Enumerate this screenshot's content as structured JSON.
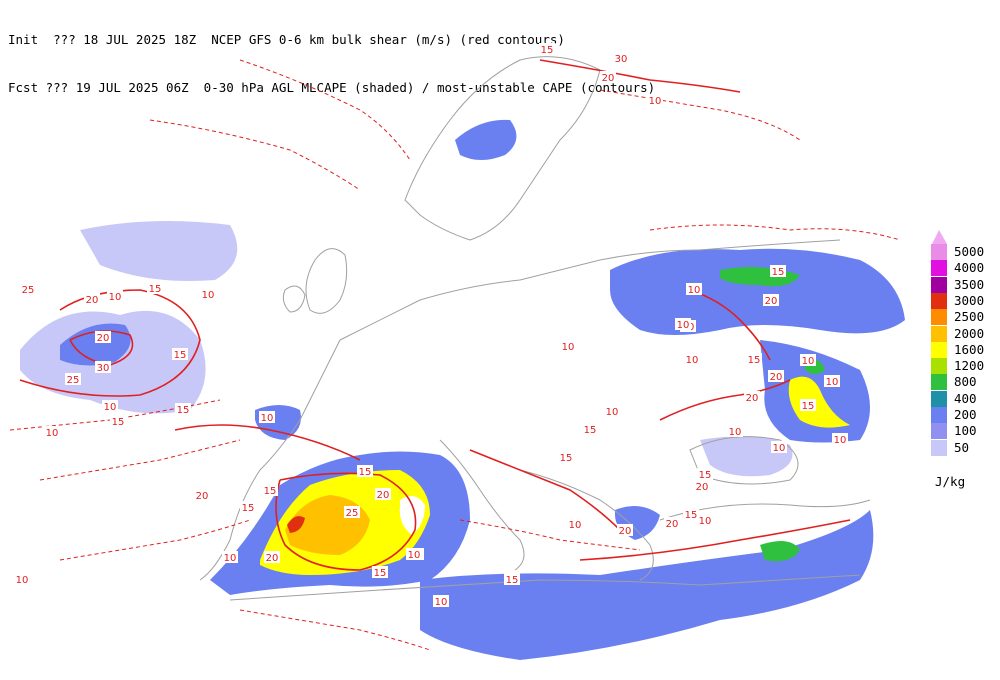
{
  "header": {
    "line1": "Init  ??? 18 JUL 2025 18Z  NCEP GFS 0-6 km bulk shear (m/s) (red contours)",
    "line2": "Fcst ??? 19 JUL 2025 06Z  0-30 hPa AGL MLCAPE (shaded) / most-unstable CAPE (contours)"
  },
  "legend": {
    "units": "J/kg",
    "levels": [
      {
        "label": "5000",
        "color": "#e88ce8"
      },
      {
        "label": "4000",
        "color": "#e010e0"
      },
      {
        "label": "3500",
        "color": "#a000a0"
      },
      {
        "label": "3000",
        "color": "#e03010"
      },
      {
        "label": "2500",
        "color": "#ff8c00"
      },
      {
        "label": "2000",
        "color": "#ffc000"
      },
      {
        "label": "1600",
        "color": "#ffff00"
      },
      {
        "label": "1200",
        "color": "#a8e000"
      },
      {
        "label": "800",
        "color": "#30c040"
      },
      {
        "label": "400",
        "color": "#1e90a8"
      },
      {
        "label": "200",
        "color": "#6a80f0"
      },
      {
        "label": "100",
        "color": "#9090f0"
      },
      {
        "label": "50",
        "color": "#c8c8f8"
      }
    ],
    "top_marker_color": "#f0a8f0"
  },
  "shear_labels": [
    "25",
    "10",
    "20",
    "15",
    "30",
    "10",
    "10",
    "15",
    "10",
    "15",
    "10",
    "15",
    "20",
    "15",
    "20",
    "10",
    "25",
    "10",
    "20",
    "15",
    "15",
    "15",
    "20",
    "25",
    "15",
    "15",
    "20",
    "10",
    "15",
    "10",
    "20",
    "15",
    "10",
    "20",
    "15",
    "10",
    "20",
    "15",
    "10",
    "30",
    "20",
    "15",
    "10",
    "10",
    "10",
    "15",
    "10",
    "15",
    "10",
    "10",
    "20",
    "10",
    "10",
    "15",
    "10",
    "20",
    "10",
    "10"
  ]
}
